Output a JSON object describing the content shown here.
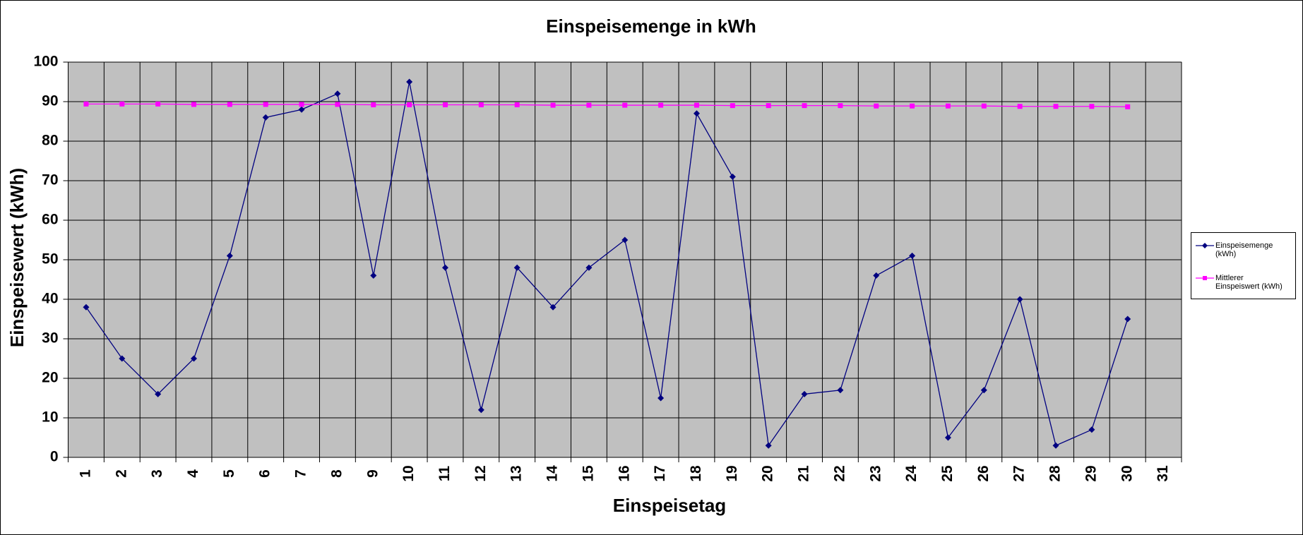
{
  "chart_data": {
    "type": "line",
    "title": "Einspeisemenge in kWh",
    "x_label": "Einspeisetag",
    "y_label": "Einspeisewert  (kWh)",
    "categories": [
      "1",
      "2",
      "3",
      "4",
      "5",
      "6",
      "7",
      "8",
      "9",
      "10",
      "11",
      "12",
      "13",
      "14",
      "15",
      "16",
      "17",
      "18",
      "19",
      "20",
      "21",
      "22",
      "23",
      "24",
      "25",
      "26",
      "27",
      "28",
      "29",
      "30",
      "31"
    ],
    "series": [
      {
        "name": "Einspeisemenge (kWh)",
        "color": "#000080",
        "marker": "diamond",
        "values": [
          38,
          25,
          16,
          25,
          51,
          86,
          88,
          92,
          46,
          95,
          48,
          12,
          48,
          38,
          48,
          55,
          15,
          87,
          71,
          3,
          16,
          17,
          46,
          51,
          5,
          17,
          40,
          3,
          7,
          35,
          null
        ]
      },
      {
        "name": "Mittlerer Einspeiswert (kWh)",
        "color": "#ff00ff",
        "marker": "square",
        "values": [
          89.4,
          89.4,
          89.4,
          89.3,
          89.3,
          89.3,
          89.3,
          89.3,
          89.2,
          89.2,
          89.2,
          89.2,
          89.2,
          89.1,
          89.1,
          89.1,
          89.1,
          89.1,
          89.0,
          89.0,
          89.0,
          89.0,
          88.9,
          88.9,
          88.9,
          88.9,
          88.8,
          88.8,
          88.8,
          88.7,
          null
        ]
      }
    ],
    "ylim": [
      0,
      100
    ],
    "yticks": [
      0,
      10,
      20,
      30,
      40,
      50,
      60,
      70,
      80,
      90,
      100
    ],
    "grid": true,
    "legend": "right"
  }
}
